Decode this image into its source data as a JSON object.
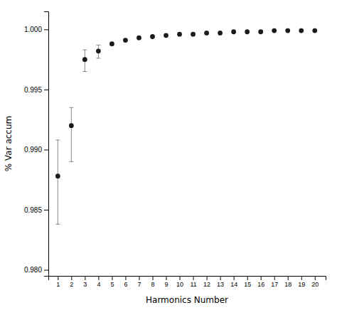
{
  "chart_data": {
    "type": "scatter",
    "x": [
      1,
      2,
      3,
      4,
      5,
      6,
      7,
      8,
      9,
      10,
      11,
      12,
      13,
      14,
      15,
      16,
      17,
      18,
      19,
      20
    ],
    "values": [
      0.9878,
      0.992,
      0.9975,
      0.9982,
      0.9988,
      0.9991,
      0.9993,
      0.9994,
      0.9995,
      0.9996,
      0.9996,
      0.9997,
      0.9997,
      0.9998,
      0.9998,
      0.9998,
      0.9999,
      0.9999,
      0.9999,
      0.9999
    ],
    "yerr_lower": [
      0.004,
      0.003,
      0.001,
      0.0006,
      0.0,
      0.0,
      0.0,
      0.0,
      0.0,
      0.0,
      0.0,
      0.0,
      0.0,
      0.0,
      0.0,
      0.0,
      0.0,
      0.0,
      0.0,
      0.0
    ],
    "yerr_upper": [
      0.003,
      0.0015,
      0.0008,
      0.0005,
      0.0,
      0.0,
      0.0,
      0.0,
      0.0,
      0.0,
      0.0,
      0.0,
      0.0,
      0.0,
      0.0,
      0.0,
      0.0,
      0.0,
      0.0,
      0.0
    ],
    "xlabel": "Harmonics Number",
    "ylabel": "% Var accum",
    "color": "#1a1a1a",
    "marker": "circle",
    "xlim": [
      0.3,
      20.8
    ],
    "xticks": [
      1,
      2,
      3,
      4,
      5,
      6,
      7,
      8,
      9,
      10,
      11,
      12,
      13,
      14,
      15,
      16,
      17,
      18,
      19,
      20
    ],
    "ylim": [
      0.9795,
      1.0015
    ],
    "yticks": [
      {
        "value": 0.98,
        "label": "0.980"
      },
      0.985,
      {
        "value": 0.99,
        "label": "0.990"
      },
      0.995,
      {
        "value": 1.0,
        "label": "1.000"
      }
    ],
    "grid": false
  }
}
